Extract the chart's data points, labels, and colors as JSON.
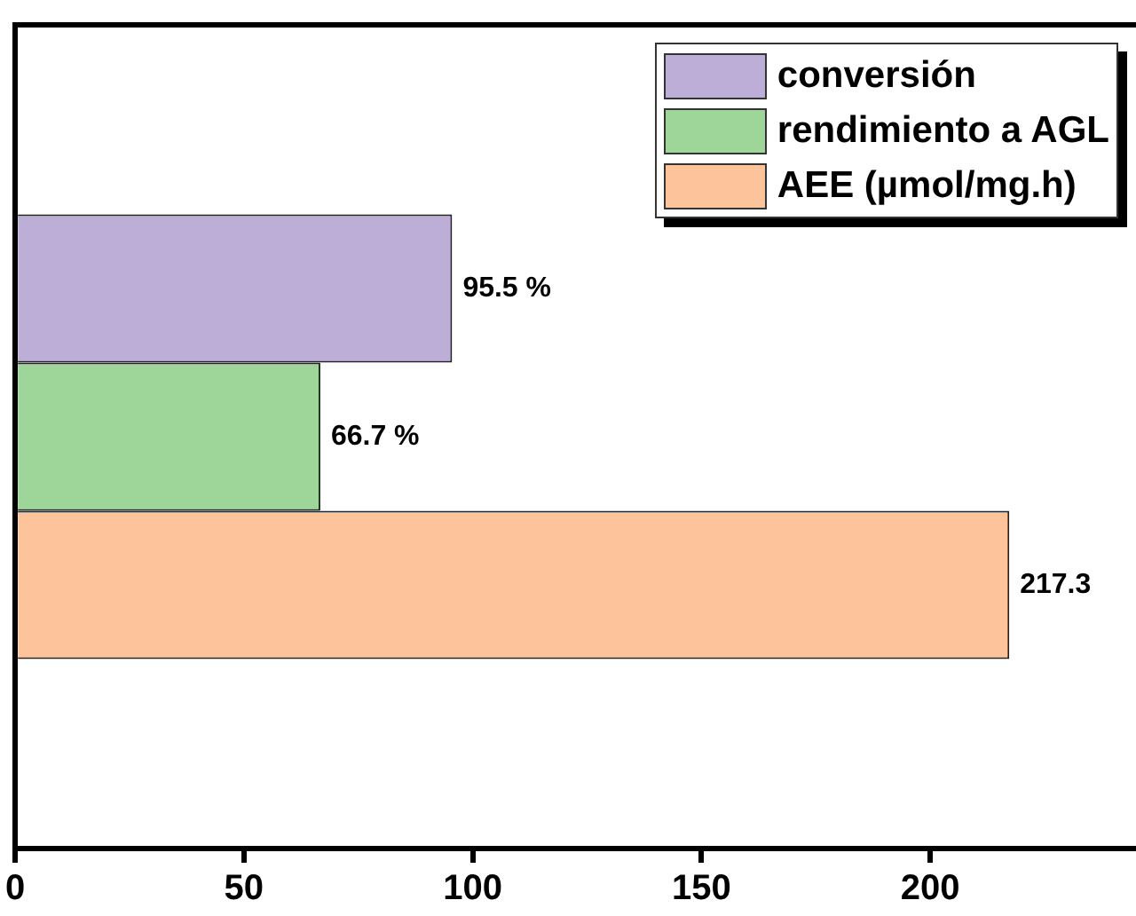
{
  "chart_data": {
    "type": "bar",
    "orientation": "horizontal",
    "categories": [
      null
    ],
    "series": [
      {
        "name": "conversión",
        "color": "#bcaed6",
        "values": [
          95.5
        ],
        "value_labels": [
          "95.5 %"
        ]
      },
      {
        "name": "rendimiento a AGL",
        "color": "#9ed69a",
        "values": [
          66.7
        ],
        "value_labels": [
          "66.7 %"
        ]
      },
      {
        "name": "AEE (µmol/mg.h)",
        "color": "#fdc49c",
        "values": [
          217.3
        ],
        "value_labels": [
          "217.3"
        ]
      }
    ],
    "xlim": [
      0,
      245
    ],
    "xticks": [
      0,
      50,
      100,
      150,
      200
    ],
    "grid": false,
    "legend": "top right"
  }
}
